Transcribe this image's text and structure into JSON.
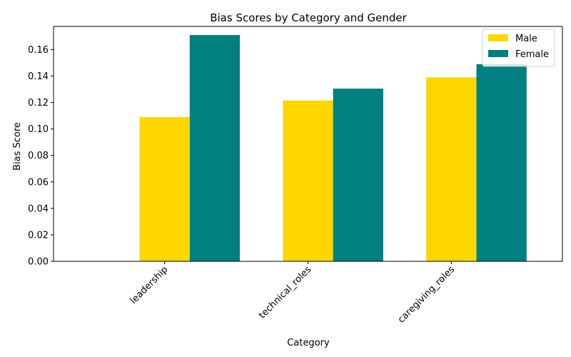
{
  "chart_data": {
    "type": "bar",
    "title": "Bias Scores by Category and Gender",
    "xlabel": "Category",
    "ylabel": "Bias Score",
    "categories": [
      "leadership",
      "technical_roles",
      "caregiving_roles"
    ],
    "series": [
      {
        "name": "Male",
        "color": "#FFD700",
        "values": [
          0.109,
          0.1215,
          0.139
        ]
      },
      {
        "name": "Female",
        "color": "#008080",
        "values": [
          0.171,
          0.1305,
          0.149
        ]
      }
    ],
    "ylim": [
      0,
      0.1775
    ],
    "yticks": [
      0.0,
      0.02,
      0.04,
      0.06,
      0.08,
      0.1,
      0.12,
      0.14,
      0.16
    ],
    "ytick_labels": [
      "0.00",
      "0.02",
      "0.04",
      "0.06",
      "0.08",
      "0.10",
      "0.12",
      "0.14",
      "0.16"
    ],
    "grid": false,
    "legend_position": "top-right",
    "xtick_rotation": 45
  }
}
